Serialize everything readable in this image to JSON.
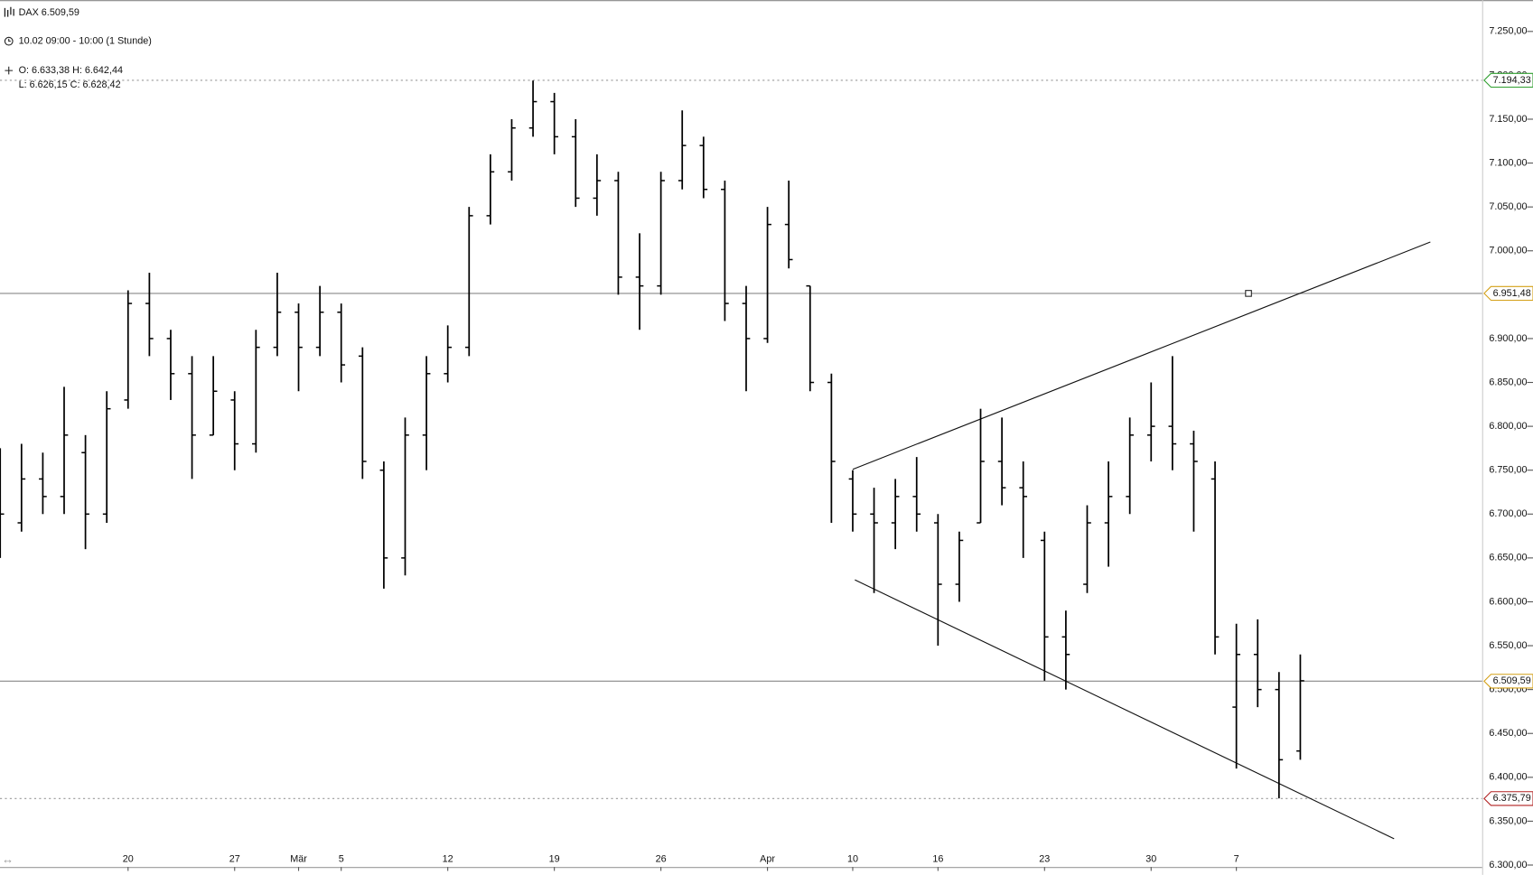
{
  "chart_data": {
    "type": "ohlc",
    "header": {
      "title": "DAX 6.509,59",
      "period": "10.02 09:00 - 10:00 (1 Stunde)",
      "ohlc_line1": "O: 6.633,38 H: 6.642,44",
      "ohlc_line2": "L:  6.626,15 C: 6.628,42"
    },
    "categories": [
      null,
      null,
      null,
      null,
      null,
      null,
      "20",
      null,
      null,
      null,
      null,
      "27",
      null,
      null,
      "Mär",
      null,
      "5",
      null,
      null,
      null,
      null,
      "12",
      null,
      null,
      null,
      null,
      "19",
      null,
      null,
      null,
      null,
      "26",
      null,
      null,
      null,
      null,
      "Apr",
      null,
      null,
      null,
      "10",
      null,
      null,
      null,
      "16",
      null,
      null,
      null,
      null,
      "23",
      null,
      null,
      null,
      null,
      "30",
      null,
      null,
      null,
      "7",
      null,
      null,
      null
    ],
    "open": [
      6760,
      6690,
      6740,
      6720,
      6770,
      6700,
      6830,
      6940,
      6900,
      6860,
      6790,
      6830,
      6780,
      6890,
      6930,
      6890,
      6930,
      6880,
      6750,
      6650,
      6790,
      6860,
      6890,
      7040,
      7090,
      7140,
      7170,
      7130,
      7060,
      7080,
      6970,
      6960,
      7080,
      7120,
      7070,
      6940,
      6900,
      7030,
      6960,
      6850,
      6740,
      6700,
      6690,
      6720,
      6690,
      6620,
      6690,
      6760,
      6730,
      6670,
      6560,
      6620,
      6690,
      6720,
      6790,
      6800,
      6780,
      6740,
      6480,
      6540,
      6500,
      6430
    ],
    "high": [
      6775,
      6780,
      6770,
      6845,
      6790,
      6840,
      6955,
      6975,
      6910,
      6880,
      6880,
      6840,
      6910,
      6975,
      6940,
      6960,
      6940,
      6890,
      6760,
      6810,
      6880,
      6915,
      7050,
      7110,
      7150,
      7194,
      7180,
      7150,
      7110,
      7090,
      7020,
      7090,
      7160,
      7130,
      7080,
      6960,
      7050,
      7080,
      6960,
      6860,
      6750,
      6730,
      6740,
      6765,
      6700,
      6680,
      6820,
      6810,
      6760,
      6680,
      6590,
      6710,
      6760,
      6810,
      6850,
      6880,
      6795,
      6760,
      6575,
      6580,
      6520,
      6540
    ],
    "low": [
      6650,
      6680,
      6700,
      6700,
      6660,
      6690,
      6820,
      6880,
      6830,
      6740,
      6790,
      6750,
      6770,
      6880,
      6840,
      6880,
      6850,
      6740,
      6615,
      6630,
      6750,
      6850,
      6880,
      7030,
      7080,
      7130,
      7110,
      7050,
      7040,
      6950,
      6910,
      6950,
      7070,
      7060,
      6920,
      6840,
      6895,
      6980,
      6840,
      6690,
      6680,
      6610,
      6660,
      6680,
      6550,
      6600,
      6690,
      6710,
      6650,
      6510,
      6500,
      6610,
      6640,
      6700,
      6760,
      6750,
      6680,
      6540,
      6410,
      6480,
      6376,
      6420
    ],
    "close": [
      6700,
      6740,
      6720,
      6790,
      6700,
      6820,
      6940,
      6900,
      6860,
      6790,
      6840,
      6780,
      6890,
      6930,
      6890,
      6930,
      6870,
      6760,
      6650,
      6790,
      6860,
      6890,
      7040,
      7090,
      7140,
      7170,
      7130,
      7060,
      7080,
      6970,
      6960,
      7080,
      7120,
      7070,
      6940,
      6900,
      7030,
      6990,
      6850,
      6760,
      6700,
      6690,
      6720,
      6700,
      6620,
      6670,
      6760,
      6730,
      6720,
      6560,
      6540,
      6690,
      6720,
      6790,
      6800,
      6780,
      6760,
      6560,
      6540,
      6500,
      6420,
      6510
    ],
    "color": "#000000",
    "ylim": [
      6300,
      7250
    ],
    "yticks": [
      {
        "value": 7250,
        "label": "7.250,00"
      },
      {
        "value": 7200,
        "label": "7.200,00"
      },
      {
        "value": 7150,
        "label": "7.150,00"
      },
      {
        "value": 7100,
        "label": "7.100,00"
      },
      {
        "value": 7050,
        "label": "7.050,00"
      },
      {
        "value": 7000,
        "label": "7.000,00"
      },
      {
        "value": 6950,
        "label": "6.950,00"
      },
      {
        "value": 6900,
        "label": "6.900,00"
      },
      {
        "value": 6850,
        "label": "6.850,00"
      },
      {
        "value": 6800,
        "label": "6.800,00"
      },
      {
        "value": 6750,
        "label": "6.750,00"
      },
      {
        "value": 6700,
        "label": "6.700,00"
      },
      {
        "value": 6650,
        "label": "6.650,00"
      },
      {
        "value": 6600,
        "label": "6.600,00"
      },
      {
        "value": 6550,
        "label": "6.550,00"
      },
      {
        "value": 6500,
        "label": "6.500,00"
      },
      {
        "value": 6450,
        "label": "6.450,00"
      },
      {
        "value": 6400,
        "label": "6.400,00"
      },
      {
        "value": 6350,
        "label": "6.350,00"
      },
      {
        "value": 6300,
        "label": "6.300,00"
      }
    ],
    "price_lines": [
      {
        "value": 7194.33,
        "label": "7.194,33",
        "style": "dotted",
        "color": "#2e9e2e"
      },
      {
        "value": 6951.48,
        "label": "6.951,48",
        "style": "solid",
        "color": "#d4a017"
      },
      {
        "value": 6509.59,
        "label": "6.509,59",
        "style": "solid",
        "color": "#d4a017"
      },
      {
        "value": 6375.79,
        "label": "6.375,79",
        "style": "dotted",
        "color": "#b22222"
      }
    ],
    "trendlines": [
      {
        "x": [
          40,
          67.1
        ],
        "y": [
          6751,
          7010
        ]
      },
      {
        "x": [
          40.1,
          65.4
        ],
        "y": [
          6625,
          6330
        ]
      }
    ]
  }
}
